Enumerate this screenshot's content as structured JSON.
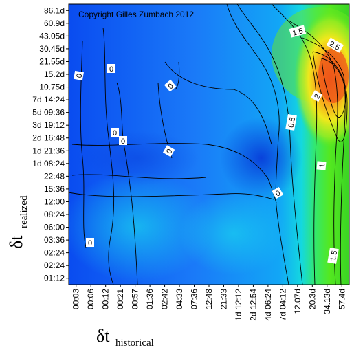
{
  "chart_data": {
    "type": "heatmap",
    "title": "",
    "copyright": "Copyright Gilles Zumbach 2012",
    "xlabel": {
      "symbol": "δt",
      "subscript": "historical"
    },
    "ylabel": {
      "symbol": "δt",
      "subscript": "realized"
    },
    "x_ticks": [
      "00:03",
      "00:06",
      "00:12",
      "00:21",
      "00:57",
      "01:36",
      "02:42",
      "04:33",
      "07:36",
      "12:48",
      "21:33",
      "1d 12:12",
      "2d 12:54",
      "4d 06:24",
      "7d 04:12",
      "12.07d",
      "20.3d",
      "34.13d",
      "57.4d"
    ],
    "y_ticks": [
      "86.1d",
      "60.9d",
      "43.05d",
      "30.45d",
      "21.55d",
      "15.2d",
      "10.75d",
      "7d 14:24",
      "5d 09:36",
      "3d 19:12",
      "2d 16:48",
      "1d 21:36",
      "1d 08:24",
      "22:48",
      "15:36",
      "12:00",
      "08:24",
      "06:00",
      "03:36",
      "02:24",
      "02:24",
      "01:12"
    ],
    "contour_labels": [
      {
        "text": "0",
        "x": "00:06",
        "y": "10.75d"
      },
      {
        "text": "0",
        "x": "00:12",
        "y": "15.2d"
      },
      {
        "text": "0",
        "x": "02:42",
        "y": "10.75d"
      },
      {
        "text": "0",
        "x": "00:12",
        "y": "2d 16:48"
      },
      {
        "text": "0",
        "x": "00:21",
        "y": "2d 16:48"
      },
      {
        "text": "0",
        "x": "02:42",
        "y": "1d 21:36"
      },
      {
        "text": "0",
        "x": "4d 06:24",
        "y": "15:36"
      },
      {
        "text": "0",
        "x": "00:06",
        "y": "03:36"
      },
      {
        "text": "0.5",
        "x": "7d 04:12",
        "y": "3d 19:12"
      },
      {
        "text": "1",
        "x": "12.07d",
        "y": "1d 08:24"
      },
      {
        "text": "1.5",
        "x": "7d 04:12",
        "y": "43.05d"
      },
      {
        "text": "1.5",
        "x": "20.3d",
        "y": "02:24"
      },
      {
        "text": "2",
        "x": "12.07d",
        "y": "7d 14:24"
      },
      {
        "text": "2.5",
        "x": "34.13d",
        "y": "30.45d"
      }
    ],
    "grid": false,
    "legend": "none"
  }
}
